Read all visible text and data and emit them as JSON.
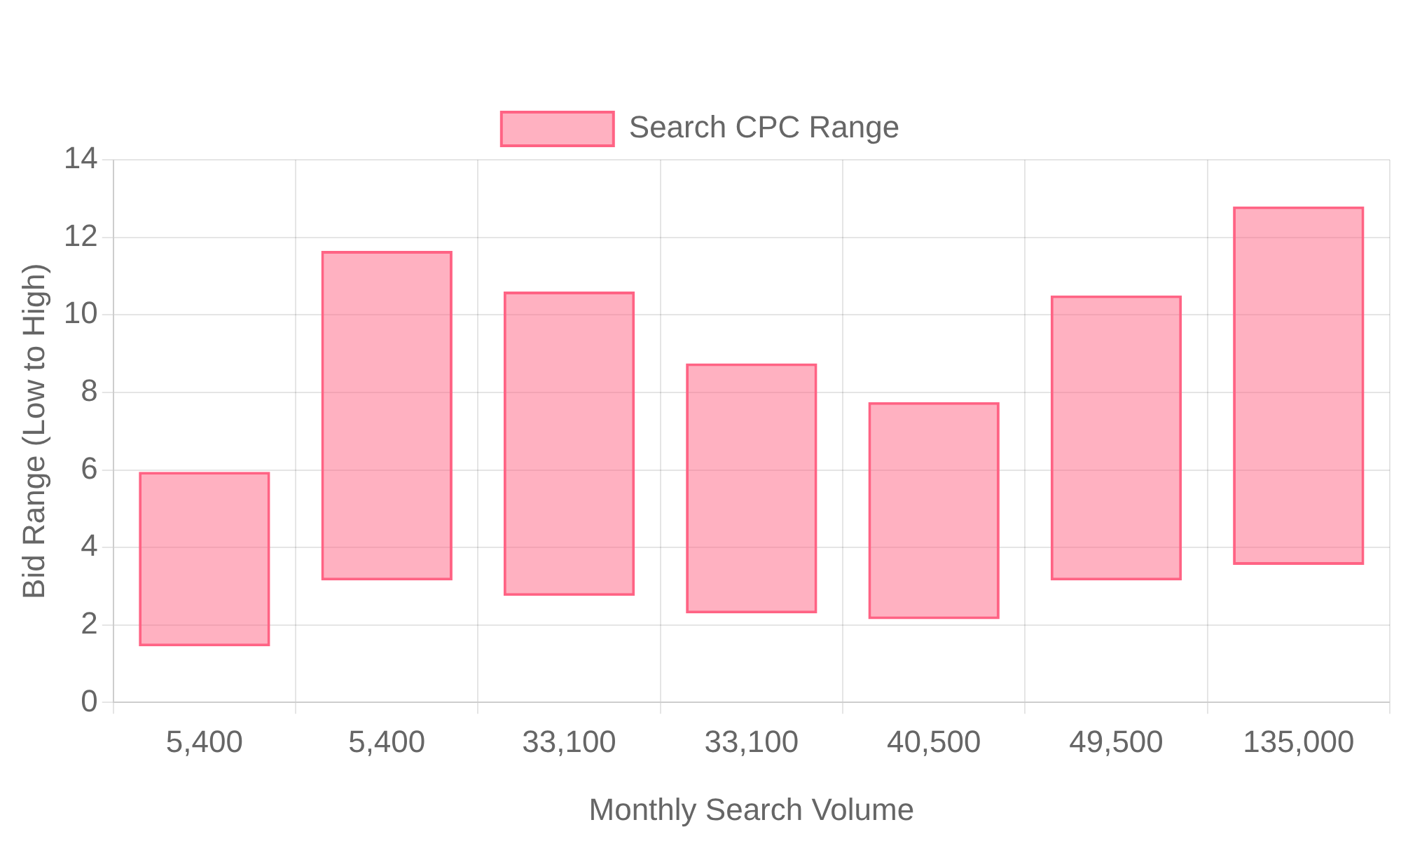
{
  "chart_data": {
    "type": "bar",
    "xlabel": "Monthly Search Volume",
    "ylabel": "Bid Range (Low to High)",
    "categories": [
      "5,400",
      "5,400",
      "33,100",
      "33,100",
      "40,500",
      "49,500",
      "135,000"
    ],
    "series": [
      {
        "name": "Search CPC Range",
        "color": "#ff6384",
        "values": [
          4.5,
          8.5,
          7.85,
          6.45,
          5.6,
          7.35,
          9.25
        ],
        "base": [
          1.45,
          3.15,
          2.75,
          2.3,
          2.15,
          3.15,
          3.55
        ]
      }
    ],
    "ylim": [
      0,
      14
    ],
    "yticks": [
      0,
      2,
      4,
      6,
      8,
      10,
      12,
      14
    ],
    "grid": true,
    "legend": "top"
  }
}
